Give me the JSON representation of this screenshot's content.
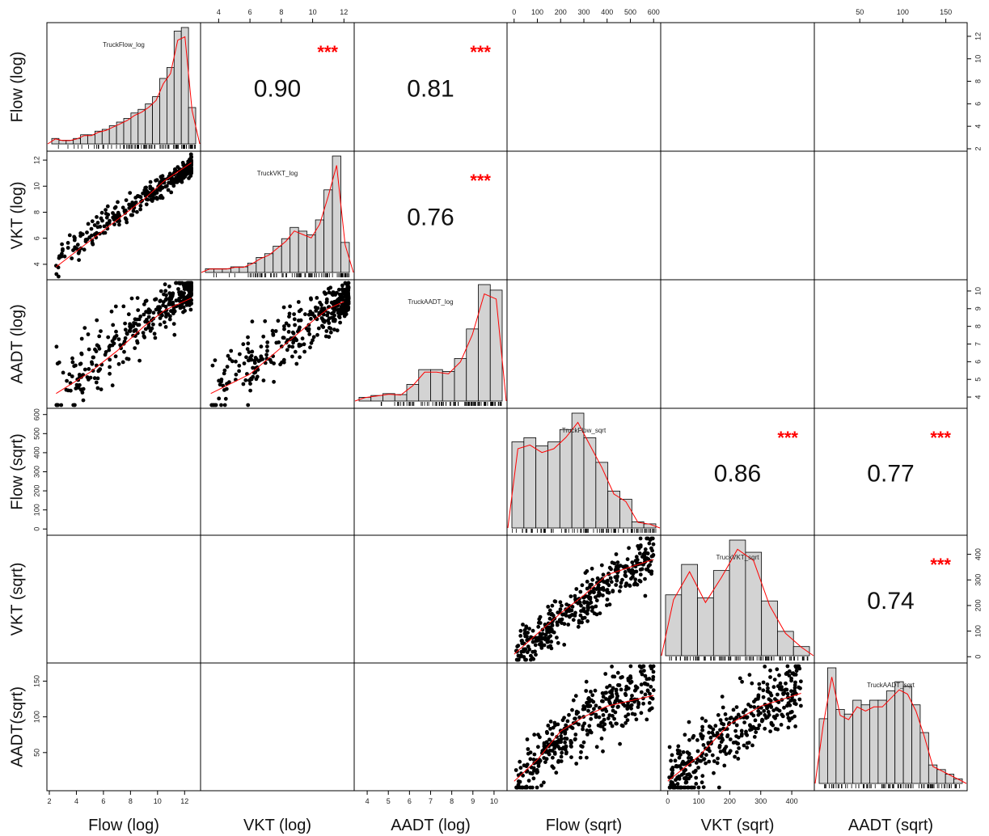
{
  "chart_data": {
    "type": "scatter-matrix",
    "variables": [
      {
        "id": "flow_log",
        "label": "Flow (log)",
        "hist_name": "TruckFlow_log",
        "range": [
          2,
          13
        ],
        "ticks": [
          2,
          4,
          6,
          8,
          10,
          12
        ]
      },
      {
        "id": "vkt_log",
        "label": "VKT (log)",
        "hist_name": "TruckVKT_log",
        "range": [
          3,
          12.5
        ],
        "ticks": [
          4,
          6,
          8,
          10,
          12
        ]
      },
      {
        "id": "aadt_log",
        "label": "AADT (log)",
        "hist_name": "TruckAADT_log",
        "range": [
          3.5,
          10.5
        ],
        "ticks": [
          4,
          5,
          6,
          7,
          8,
          9,
          10
        ]
      },
      {
        "id": "flow_sqrt",
        "label": "Flow (sqrt)",
        "hist_name": "TruckFlow_sqrt",
        "range": [
          -20,
          620
        ],
        "ticks": [
          0,
          100,
          200,
          300,
          400,
          500,
          600
        ]
      },
      {
        "id": "vkt_sqrt",
        "label": "VKT (sqrt)",
        "hist_name": "TruckVKT_sqrt",
        "range": [
          -15,
          465
        ],
        "ticks": [
          0,
          100,
          200,
          300,
          400
        ]
      },
      {
        "id": "aadt_sqrt",
        "label": "AADT(sqrt)",
        "hist_name": "TruckAADT_sqrt",
        "range": [
          0,
          172
        ],
        "ticks": [
          50,
          100,
          150
        ]
      }
    ],
    "column_labels": [
      "Flow (log)",
      "VKT (log)",
      "AADT (log)",
      "Flow (sqrt)",
      "VKT (sqrt)",
      "AADT (sqrt)"
    ],
    "correlations": [
      {
        "row": 0,
        "col": 1,
        "r": "0.90",
        "stars": "***"
      },
      {
        "row": 0,
        "col": 2,
        "r": "0.81",
        "stars": "***"
      },
      {
        "row": 1,
        "col": 2,
        "r": "0.76",
        "stars": "***"
      },
      {
        "row": 3,
        "col": 4,
        "r": "0.86",
        "stars": "***"
      },
      {
        "row": 3,
        "col": 5,
        "r": "0.77",
        "stars": "***"
      },
      {
        "row": 4,
        "col": 5,
        "r": "0.74",
        "stars": "***"
      }
    ],
    "histograms": {
      "flow_log": {
        "edges": [
          2.5,
          3,
          3.5,
          4,
          4.5,
          5,
          5.5,
          6,
          6.5,
          7,
          7.5,
          8,
          8.5,
          9,
          9.5,
          10,
          10.5,
          11,
          11.5,
          12,
          12.5
        ],
        "counts": [
          3,
          2,
          2,
          3,
          5,
          5,
          7,
          8,
          10,
          12,
          14,
          17,
          19,
          22,
          26,
          36,
          42,
          62,
          64,
          20
        ]
      },
      "vkt_log": {
        "edges": [
          3.5,
          4,
          4.5,
          5,
          5.5,
          6,
          6.5,
          7,
          7.5,
          8,
          8.5,
          9,
          9.5,
          10,
          10.5,
          11,
          11.5,
          12
        ],
        "counts": [
          2,
          2,
          2,
          3,
          3,
          5,
          8,
          10,
          14,
          18,
          24,
          22,
          20,
          28,
          44,
          62,
          16
        ]
      },
      "aadt_log": {
        "edges": [
          4,
          4.5,
          5,
          5.5,
          6,
          6.5,
          7,
          7.5,
          8,
          8.5,
          9,
          9.5,
          10
        ],
        "counts": [
          4,
          6,
          8,
          7,
          18,
          34,
          34,
          32,
          46,
          78,
          126,
          120
        ]
      },
      "flow_sqrt": {
        "edges": [
          0,
          50,
          100,
          150,
          200,
          250,
          300,
          350,
          400,
          450,
          500,
          550,
          600
        ],
        "counts": [
          42,
          44,
          40,
          42,
          48,
          56,
          44,
          32,
          18,
          14,
          3,
          2
        ]
      },
      "vkt_sqrt": {
        "edges": [
          0,
          50,
          100,
          150,
          200,
          250,
          300,
          350,
          400,
          450
        ],
        "counts": [
          20,
          30,
          19,
          28,
          38,
          34,
          18,
          8,
          3
        ]
      },
      "aadt_sqrt": {
        "edges": [
          0,
          10,
          20,
          30,
          40,
          50,
          60,
          70,
          80,
          90,
          100,
          110,
          120,
          130,
          140,
          150,
          160,
          170
        ],
        "counts": [
          28,
          50,
          32,
          30,
          36,
          34,
          36,
          36,
          40,
          44,
          42,
          34,
          22,
          8,
          6,
          4,
          2
        ]
      }
    },
    "smoothers": [
      {
        "row": 1,
        "col": 0,
        "points": [
          [
            2.5,
            3.8
          ],
          [
            5,
            5.8
          ],
          [
            7,
            7.4
          ],
          [
            9,
            9.0
          ],
          [
            10.5,
            10.4
          ],
          [
            12.5,
            11.8
          ]
        ]
      },
      {
        "row": 2,
        "col": 0,
        "points": [
          [
            2.5,
            4.2
          ],
          [
            5,
            5.4
          ],
          [
            7,
            6.6
          ],
          [
            9,
            8.0
          ],
          [
            10.5,
            8.9
          ],
          [
            12.5,
            9.6
          ]
        ]
      },
      {
        "row": 2,
        "col": 1,
        "points": [
          [
            3.5,
            4.2
          ],
          [
            6,
            5.3
          ],
          [
            8,
            6.8
          ],
          [
            10,
            8.3
          ],
          [
            11,
            9.0
          ],
          [
            12,
            9.4
          ]
        ]
      },
      {
        "row": 4,
        "col": 3,
        "points": [
          [
            0,
            10
          ],
          [
            100,
            90
          ],
          [
            200,
            170
          ],
          [
            300,
            240
          ],
          [
            400,
            320
          ],
          [
            600,
            380
          ]
        ]
      },
      {
        "row": 5,
        "col": 3,
        "points": [
          [
            0,
            10
          ],
          [
            100,
            40
          ],
          [
            200,
            80
          ],
          [
            300,
            100
          ],
          [
            400,
            115
          ],
          [
            600,
            130
          ]
        ]
      },
      {
        "row": 5,
        "col": 4,
        "points": [
          [
            0,
            10
          ],
          [
            100,
            45
          ],
          [
            200,
            90
          ],
          [
            300,
            115
          ],
          [
            430,
            133
          ]
        ]
      }
    ],
    "scatter_specs": [
      {
        "row": 1,
        "col": 0,
        "n": 360,
        "fn": "lin",
        "a": 0.72,
        "b": 2.6,
        "noise": 0.55,
        "xmode": "skew",
        "xmin": 2.5,
        "xmax": 12.5,
        "seed": 11
      },
      {
        "row": 2,
        "col": 0,
        "n": 360,
        "fn": "lin",
        "a": 0.6,
        "b": 2.8,
        "noise": 0.8,
        "xmode": "skew",
        "xmin": 2.5,
        "xmax": 12.5,
        "seed": 23
      },
      {
        "row": 2,
        "col": 1,
        "n": 360,
        "fn": "lin",
        "a": 0.62,
        "b": 2.0,
        "noise": 0.85,
        "xmode": "skew",
        "xmin": 3.5,
        "xmax": 12.3,
        "seed": 37
      },
      {
        "row": 4,
        "col": 3,
        "n": 380,
        "fn": "lin",
        "a": 0.66,
        "b": 10,
        "noise": 45,
        "xmode": "uniform",
        "xmin": 5,
        "xmax": 600,
        "seed": 41
      },
      {
        "row": 5,
        "col": 3,
        "n": 380,
        "fn": "sqrtcurve",
        "a": 5.6,
        "b": -5,
        "noise": 22,
        "xmode": "uniform",
        "xmin": 5,
        "xmax": 600,
        "seed": 53
      },
      {
        "row": 5,
        "col": 4,
        "n": 380,
        "fn": "sqrtcurve",
        "a": 6.6,
        "b": -5,
        "noise": 22,
        "xmode": "uniform",
        "xmin": 5,
        "xmax": 430,
        "seed": 67
      }
    ],
    "colors": {
      "points": "#000000",
      "smoother": "#ff0000",
      "hist_fill": "#d3d3d3",
      "stars": "#ff0000",
      "border": "#000000"
    },
    "grid": false
  }
}
